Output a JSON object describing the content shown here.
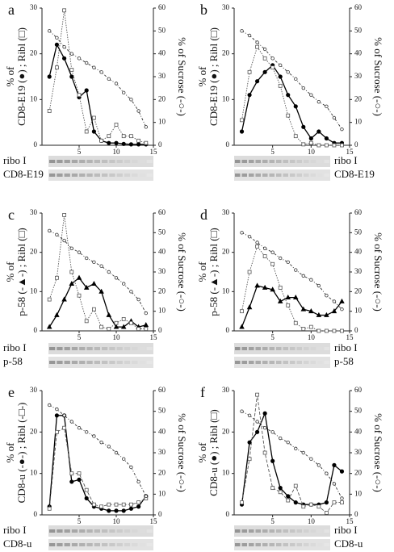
{
  "chart_data": [
    {
      "type": "line",
      "label": "a",
      "ylabel": [
        "% of",
        "CD8-E19 (●) ; Ribl (□)"
      ],
      "y2label": "% of Sucrose (-○-)",
      "x": [
        1,
        2,
        3,
        4,
        5,
        6,
        7,
        8,
        9,
        10,
        11,
        12,
        13,
        14
      ],
      "xlim": [
        0,
        15
      ],
      "xticks": [
        5,
        10,
        15
      ],
      "ylim": [
        0,
        30
      ],
      "yticks": [
        0,
        10,
        20,
        30
      ],
      "y2lim": [
        0,
        60
      ],
      "y2ticks": [
        0,
        10,
        20,
        30,
        40,
        50,
        60
      ],
      "series": [
        {
          "marker": "circle",
          "filled": true,
          "line_style": "solid",
          "color": "#000000",
          "values": [
            15,
            22,
            19,
            15,
            10.5,
            12,
            3,
            1,
            0.5,
            0.5,
            0.3,
            0.2,
            0.2,
            0.2
          ]
        },
        {
          "marker": "square",
          "filled": false,
          "line_style": "dotted",
          "color": "#555555",
          "values": [
            7.5,
            17,
            29.5,
            16.5,
            11,
            3,
            6,
            1,
            2,
            4.5,
            2,
            2,
            1,
            0.5
          ]
        },
        {
          "marker": "circle",
          "filled": false,
          "line_style": "dashdot",
          "color": "#333333",
          "axis": "y2",
          "values": [
            50,
            47,
            43,
            40,
            38,
            36,
            34,
            32,
            29,
            27,
            23,
            20,
            15,
            8
          ]
        }
      ],
      "blots": [
        "ribo I",
        "CD8-E19"
      ]
    },
    {
      "type": "line",
      "label": "b",
      "ylabel": [
        "% of",
        "CD8-E19 (●) ; Ribl (□)"
      ],
      "y2label": "% of Sucrose (-○-)",
      "x": [
        1,
        2,
        3,
        4,
        5,
        6,
        7,
        8,
        9,
        10,
        11,
        12,
        13,
        14
      ],
      "xlim": [
        0,
        15
      ],
      "xticks": [
        5,
        10,
        15
      ],
      "ylim": [
        0,
        30
      ],
      "yticks": [
        0,
        10,
        20,
        30
      ],
      "y2lim": [
        0,
        60
      ],
      "y2ticks": [
        0,
        10,
        20,
        30,
        40,
        50,
        60
      ],
      "series": [
        {
          "marker": "circle",
          "filled": true,
          "line_style": "solid",
          "color": "#000000",
          "values": [
            3,
            11,
            14,
            16,
            17.5,
            15,
            11,
            8.5,
            4,
            1.5,
            3,
            1.5,
            0.5,
            0.5
          ]
        },
        {
          "marker": "square",
          "filled": false,
          "line_style": "dotted",
          "color": "#555555",
          "values": [
            5.5,
            16,
            21.5,
            19,
            17,
            13,
            6.5,
            2,
            0.2,
            0.5,
            0,
            0,
            0,
            0
          ]
        },
        {
          "marker": "circle",
          "filled": false,
          "line_style": "dashdot",
          "color": "#333333",
          "axis": "y2",
          "values": [
            50,
            48,
            45,
            42,
            38,
            35,
            32,
            29,
            25,
            22,
            19,
            17,
            12,
            7
          ]
        }
      ],
      "blots": [
        "ribo I",
        "CD8-E19"
      ]
    },
    {
      "type": "line",
      "label": "c",
      "ylabel": [
        "% of",
        "p-58 (-▲-) ; Ribl (□)"
      ],
      "y2label": "% of Sucrose (-○-)",
      "x": [
        1,
        2,
        3,
        4,
        5,
        6,
        7,
        8,
        9,
        10,
        11,
        12,
        13,
        14
      ],
      "xlim": [
        0,
        15
      ],
      "xticks": [
        5,
        10,
        15
      ],
      "ylim": [
        0,
        30
      ],
      "yticks": [
        0,
        10,
        20,
        30
      ],
      "y2lim": [
        0,
        60
      ],
      "y2ticks": [
        0,
        10,
        20,
        30,
        40,
        50,
        60
      ],
      "series": [
        {
          "marker": "triangle",
          "filled": true,
          "line_style": "solid",
          "color": "#000000",
          "values": [
            1,
            4,
            8,
            12,
            13.5,
            11,
            12,
            10,
            4,
            1,
            1,
            2.5,
            1,
            1.5
          ]
        },
        {
          "marker": "square",
          "filled": false,
          "line_style": "dotted",
          "color": "#555555",
          "values": [
            8,
            13.5,
            29.5,
            15,
            9,
            2.5,
            5.5,
            1,
            0.5,
            2,
            3,
            2,
            0.5,
            0.5
          ]
        },
        {
          "marker": "circle",
          "filled": false,
          "line_style": "dashdot",
          "color": "#333333",
          "axis": "y2",
          "values": [
            51,
            49,
            46,
            42,
            40,
            37,
            35,
            33,
            30,
            27,
            24,
            20,
            16,
            9
          ]
        }
      ],
      "blots": [
        "ribo I",
        "p-58"
      ]
    },
    {
      "type": "line",
      "label": "d",
      "ylabel": [
        "% of",
        "p-58 (-▲-) ; Ribl (□)"
      ],
      "y2label": "% of Sucrose (-○-)",
      "x": [
        1,
        2,
        3,
        4,
        5,
        6,
        7,
        8,
        9,
        10,
        11,
        12,
        13,
        14
      ],
      "xlim": [
        0,
        15
      ],
      "xticks": [
        5,
        10,
        15
      ],
      "ylim": [
        0,
        30
      ],
      "yticks": [
        0,
        10,
        20,
        30
      ],
      "y2lim": [
        0,
        60
      ],
      "y2ticks": [
        0,
        10,
        20,
        30,
        40,
        50,
        60
      ],
      "series": [
        {
          "marker": "triangle",
          "filled": true,
          "line_style": "solid",
          "color": "#000000",
          "values": [
            1,
            6,
            11.5,
            11,
            10.5,
            7.5,
            8.5,
            8.5,
            5.5,
            5,
            4,
            4,
            5,
            7.5
          ]
        },
        {
          "marker": "square",
          "filled": false,
          "line_style": "dotted",
          "color": "#555555",
          "values": [
            5,
            15,
            21.5,
            19,
            17,
            11,
            6.5,
            2,
            0.5,
            1,
            0,
            0,
            0,
            0
          ]
        },
        {
          "marker": "circle",
          "filled": false,
          "line_style": "dashdot",
          "color": "#333333",
          "axis": "y2",
          "values": [
            50,
            48,
            45,
            42,
            40,
            37,
            35,
            31,
            28,
            26,
            23,
            18,
            15,
            11
          ]
        }
      ],
      "blots": [
        "ribo I",
        "p-58"
      ]
    },
    {
      "type": "line",
      "label": "e",
      "ylabel": [
        "% of",
        "CD8-u (-●-) ; Ribl (-□-)"
      ],
      "y2label": "% of Sucrose (-○-)",
      "x": [
        1,
        2,
        3,
        4,
        5,
        6,
        7,
        8,
        9,
        10,
        11,
        12,
        13,
        14
      ],
      "xlim": [
        0,
        15
      ],
      "xticks": [
        5,
        10,
        15
      ],
      "ylim": [
        0,
        30
      ],
      "yticks": [
        0,
        10,
        20,
        30
      ],
      "y2lim": [
        0,
        60
      ],
      "y2ticks": [
        0,
        10,
        20,
        30,
        40,
        50,
        60
      ],
      "series": [
        {
          "marker": "circle",
          "filled": true,
          "line_style": "solid",
          "color": "#000000",
          "values": [
            2,
            24,
            24,
            8,
            8.5,
            4,
            2,
            1.5,
            1,
            1,
            1,
            1.5,
            2,
            4.5
          ]
        },
        {
          "marker": "square",
          "filled": false,
          "line_style": "dashed",
          "color": "#555555",
          "values": [
            1.5,
            20,
            21,
            10,
            10,
            6,
            2.5,
            2,
            2.5,
            2.5,
            2.5,
            2.5,
            3,
            4
          ]
        },
        {
          "marker": "circle",
          "filled": false,
          "line_style": "dashdot",
          "color": "#333333",
          "axis": "y2",
          "values": [
            53,
            51,
            48,
            45,
            42,
            40,
            38,
            35,
            33,
            30,
            27,
            23,
            16,
            9
          ]
        }
      ],
      "blots": [
        "ribo I",
        "CD8-u"
      ]
    },
    {
      "type": "line",
      "label": "f",
      "ylabel": [
        "% of",
        "CD8-u (●) ; Ribl (□)"
      ],
      "y2label": "% of Sucrose (-○-)",
      "x": [
        1,
        2,
        3,
        4,
        5,
        6,
        7,
        8,
        9,
        10,
        11,
        12,
        13,
        14
      ],
      "xlim": [
        0,
        15
      ],
      "xticks": [
        5,
        10,
        15
      ],
      "ylim": [
        0,
        30
      ],
      "yticks": [
        0,
        10,
        20,
        30
      ],
      "y2lim": [
        0,
        60
      ],
      "y2ticks": [
        0,
        10,
        20,
        30,
        40,
        50,
        60
      ],
      "series": [
        {
          "marker": "circle",
          "filled": true,
          "line_style": "solid",
          "color": "#000000",
          "values": [
            2.5,
            17.5,
            20,
            24.5,
            13,
            6.5,
            4.5,
            3,
            2.5,
            2.5,
            2.5,
            3,
            12,
            10.5
          ]
        },
        {
          "marker": "square",
          "filled": false,
          "line_style": "dashed",
          "color": "#555555",
          "values": [
            3,
            13.5,
            29,
            15,
            6.5,
            5.5,
            3.5,
            7,
            2,
            2.5,
            2,
            0.5,
            3,
            3
          ]
        },
        {
          "marker": "circle",
          "filled": false,
          "line_style": "dashdot",
          "color": "#333333",
          "axis": "y2",
          "values": [
            50,
            48,
            45,
            42,
            40,
            37,
            35,
            32,
            30,
            27,
            24,
            20,
            15,
            8
          ]
        }
      ],
      "blots": [
        "ribo I",
        "CD8-u"
      ]
    }
  ]
}
